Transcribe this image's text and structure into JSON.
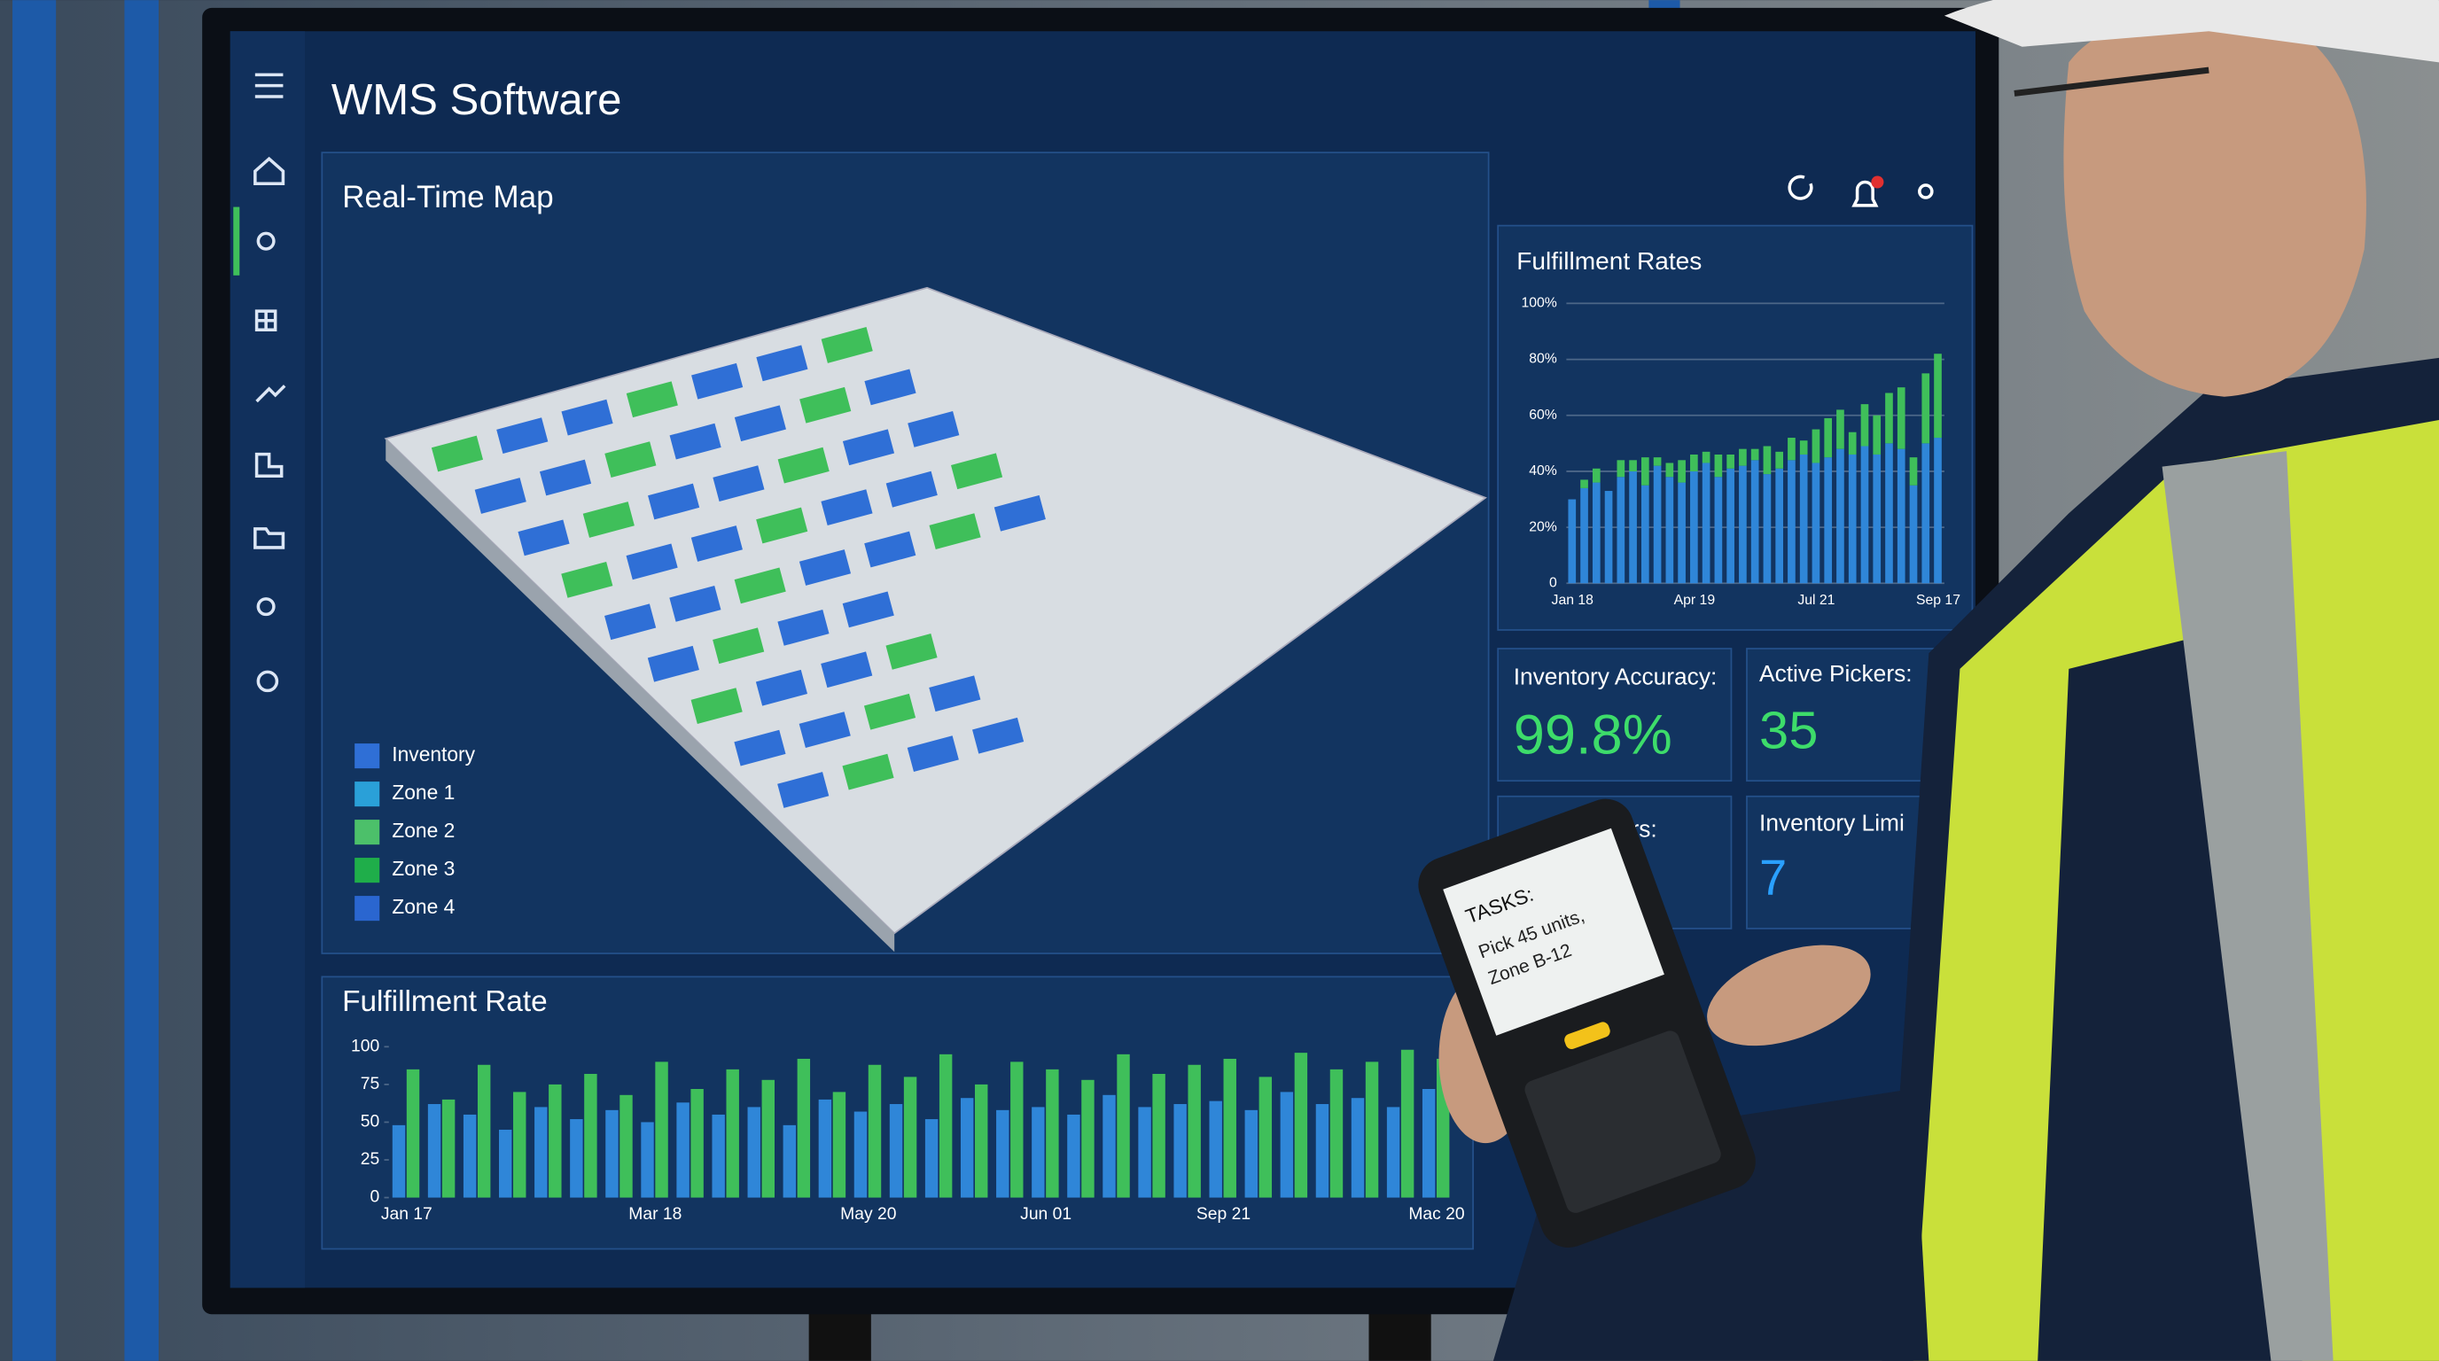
{
  "app": {
    "title": "WMS Software"
  },
  "map": {
    "title": "Real-Time Map",
    "legend": [
      {
        "name": "Inventory",
        "color": "#2f6fd6"
      },
      {
        "name": "Zone 1",
        "color": "#2aa0d8"
      },
      {
        "name": "Zone 2",
        "color": "#4cc06a"
      },
      {
        "name": "Zone 3",
        "color": "#1fae4a"
      },
      {
        "name": "Zone 4",
        "color": "#2a66d0"
      }
    ]
  },
  "kpis": [
    {
      "label": "Inventory Accuracy:",
      "value": "99.8%"
    },
    {
      "label": "Active Pickers:",
      "value": "35"
    },
    {
      "label": "Pickers:"
    },
    {
      "label": "Inventory Limi",
      "value": "7"
    }
  ],
  "device": {
    "title": "TASKS:",
    "lines": [
      "Pick 45 units,",
      "Zone B-12"
    ]
  },
  "chart_data": [
    {
      "type": "bar",
      "title": "Fulfillment Rates",
      "stacked": true,
      "grid": true,
      "categories": [
        "Jan 18",
        null,
        null,
        null,
        null,
        null,
        null,
        null,
        null,
        null,
        "Apr 19",
        null,
        null,
        null,
        null,
        null,
        null,
        null,
        null,
        null,
        "Jul 21",
        null,
        null,
        null,
        null,
        null,
        null,
        null,
        null,
        null,
        "Sep 17"
      ],
      "series": [
        {
          "color": "#2f86d8",
          "values": [
            30,
            34,
            36,
            33,
            38,
            40,
            35,
            42,
            38,
            36,
            40,
            43,
            38,
            41,
            42,
            44,
            39,
            41,
            44,
            46,
            43,
            45,
            48,
            46,
            49,
            46,
            50,
            48,
            35,
            50,
            52
          ]
        },
        {
          "color": "#3fbf5a",
          "values": [
            0,
            3,
            5,
            0,
            6,
            4,
            10,
            3,
            5,
            8,
            6,
            4,
            8,
            5,
            6,
            4,
            10,
            6,
            8,
            5,
            12,
            14,
            14,
            8,
            15,
            14,
            18,
            22,
            10,
            25,
            30
          ]
        }
      ],
      "ylim": [
        0,
        100
      ],
      "yticks": [
        0,
        {
          "value": 20,
          "label": "20%"
        },
        {
          "value": 40,
          "label": "40%"
        },
        {
          "value": 60,
          "label": "60%"
        },
        {
          "value": 80,
          "label": "80%"
        },
        {
          "value": 100,
          "label": "100%"
        }
      ]
    },
    {
      "type": "bar",
      "title": "Fulfillment Rate",
      "stacked": false,
      "grid": false,
      "categories": [
        "Jan 17",
        null,
        null,
        null,
        null,
        null,
        null,
        "Mar 18",
        null,
        null,
        null,
        null,
        null,
        "May 20",
        null,
        null,
        null,
        null,
        "Jun 01",
        null,
        null,
        null,
        null,
        "Sep 21",
        null,
        null,
        null,
        null,
        null,
        "Mac 20"
      ],
      "series": [
        {
          "color": "#2f86d8",
          "values": [
            48,
            62,
            55,
            45,
            60,
            52,
            58,
            50,
            63,
            55,
            60,
            48,
            65,
            57,
            62,
            52,
            66,
            58,
            60,
            55,
            68,
            60,
            62,
            64,
            58,
            70,
            62,
            66,
            60,
            72
          ]
        },
        {
          "color": "#3fbf5a",
          "values": [
            85,
            65,
            88,
            70,
            75,
            82,
            68,
            90,
            72,
            85,
            78,
            92,
            70,
            88,
            80,
            95,
            75,
            90,
            85,
            78,
            95,
            82,
            88,
            92,
            80,
            96,
            85,
            90,
            98,
            92
          ]
        }
      ],
      "ylim": [
        0,
        100
      ],
      "yticks": [
        0,
        25,
        50,
        75,
        100
      ]
    }
  ]
}
